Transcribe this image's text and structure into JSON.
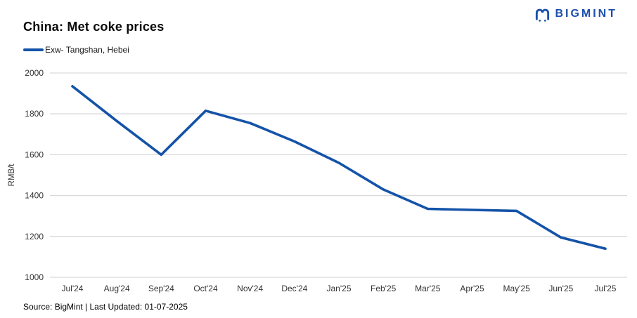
{
  "header": {
    "title": "China: Met coke prices",
    "brand_name": "BIGMINT"
  },
  "legend": {
    "series_label": "Exw- Tangshan, Hebei"
  },
  "footer": {
    "source_text": "Source: BigMint | Last Updated: 01-07-2025"
  },
  "colors": {
    "line": "#1453a8",
    "brand": "#1d4fad",
    "gridline": "#d9d9d9",
    "axis_text": "#333333",
    "title_text": "#0a0a0a"
  },
  "chart_data": {
    "type": "line",
    "title": "China: Met coke prices",
    "ylabel": "RMB/t",
    "xlabel": "",
    "categories": [
      "Jul'24",
      "Aug'24",
      "Sep'24",
      "Oct'24",
      "Nov'24",
      "Dec'24",
      "Jan'25",
      "Feb'25",
      "Mar'25",
      "Apr'25",
      "May'25",
      "Jun'25",
      "Jul'25"
    ],
    "series": [
      {
        "name": "Exw- Tangshan, Hebei",
        "values": [
          1935,
          1765,
          1600,
          1815,
          1755,
          1665,
          1560,
          1430,
          1335,
          1330,
          1325,
          1195,
          1140
        ]
      }
    ],
    "ylim": [
      1000,
      2000
    ],
    "yticks": [
      1000,
      1200,
      1400,
      1600,
      1800,
      2000
    ],
    "grid": "horizontal",
    "legend_position": "top-left"
  }
}
